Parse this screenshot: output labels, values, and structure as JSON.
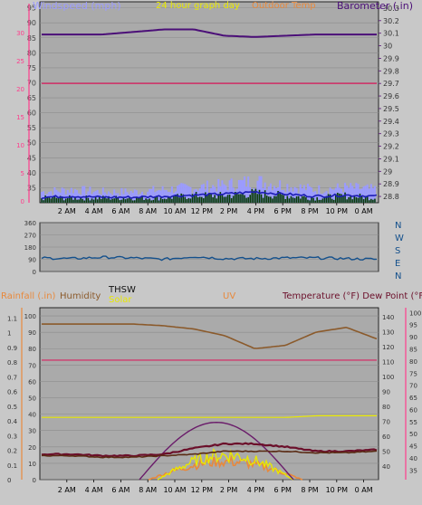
{
  "header": {
    "wind_label": "Windspeed (mph)",
    "graph_label": "24 hour graph day",
    "temp_label": "Outdoor Temp",
    "baro_label": "Barometer (.in)"
  },
  "compass": [
    "N",
    "W",
    "S",
    "E",
    "N"
  ],
  "colors": {
    "background": "#c8c8c8",
    "plot_bg": "#aaaaaa",
    "grid": "#8c8c8c",
    "wind": "#9b9bff",
    "wind_dark": "#1c1cb4",
    "wind_avg": "#0a3d0a",
    "barometer": "#4b0f78",
    "outdoor_temp": "#d03a6e",
    "direction": "#14508c",
    "humidity": "#8b5a2b",
    "uv": "#6a1b6a",
    "solar": "#e8e800",
    "rain": "#e8893c",
    "temperature": "#6b0f2a",
    "dew_point": "#5a2b14",
    "axis_pink": "#ff3c8c",
    "axis_purple": "#5a1478",
    "axis_red": "#8b1a1a"
  },
  "chart_data": [
    {
      "type": "line",
      "title": "24 hour graph day",
      "x": [
        "2 AM",
        "4 AM",
        "6 AM",
        "8 AM",
        "10 AM",
        "12 PM",
        "2 PM",
        "4 PM",
        "6 PM",
        "8 PM",
        "10 PM",
        "0 AM"
      ],
      "y_left": {
        "label": "Windspeed (mph)",
        "ticks": [
          35,
          40,
          45,
          50,
          55,
          60,
          65,
          70,
          75,
          80,
          85,
          90,
          95
        ],
        "ylim": [
          30,
          97
        ]
      },
      "y_right": {
        "label": "Barometer (.in)",
        "ticks": [
          "28.8",
          "28.9",
          "29",
          "29.1",
          "29.2",
          "29.3",
          "29.4",
          "29.5",
          "29.6",
          "29.7",
          "29.8",
          "29.9",
          "30",
          "30.1",
          "30.2",
          "30.3"
        ],
        "ylim": [
          28.75,
          30.35
        ]
      },
      "pink_axis_ticks": [
        0,
        5,
        10,
        15,
        20,
        25,
        30
      ],
      "series": [
        {
          "name": "Barometer (.in)",
          "values": [
            30.09,
            30.09,
            30.09,
            30.11,
            30.13,
            30.13,
            30.08,
            30.07,
            30.08,
            30.09,
            30.09,
            30.09
          ]
        },
        {
          "name": "Outdoor Temp",
          "values": [
            29.7,
            29.7,
            29.7,
            29.7,
            29.7,
            29.7,
            29.7,
            29.7,
            29.7,
            29.7,
            29.7,
            29.7
          ]
        },
        {
          "values": [
            5,
            6,
            5,
            5,
            6,
            7,
            8,
            10,
            8,
            6,
            7,
            6
          ]
        },
        {
          "values": [
            2,
            2,
            2,
            2,
            2,
            3,
            3,
            4,
            3,
            2,
            3,
            2
          ]
        }
      ]
    },
    {
      "type": "line",
      "x": [
        "2 AM",
        "4 AM",
        "6 AM",
        "8 AM",
        "10 AM",
        "12 PM",
        "2 PM",
        "4 PM",
        "6 PM",
        "8 PM",
        "10 PM",
        "0 AM"
      ],
      "y_left": {
        "ticks": [
          0,
          90,
          180,
          270,
          360
        ],
        "ylim": [
          0,
          360
        ]
      },
      "series": [
        {
          "values": [
            100,
            95,
            105,
            100,
            90,
            110,
            95,
            95,
            100,
            100,
            95,
            90
          ]
        }
      ]
    },
    {
      "type": "line",
      "x": [
        "2 AM",
        "4 AM",
        "6 AM",
        "8 AM",
        "10 AM",
        "12 PM",
        "2 PM",
        "4 PM",
        "6 PM",
        "8 PM",
        "10 PM",
        "0 AM"
      ],
      "labels": {
        "rain": "Rainfall (.in)",
        "humidity": "Humidity",
        "thsw": "THSW",
        "solar": "Solar",
        "uv": "UV",
        "temp": "Temperature (°F) Dew Point (°F)"
      },
      "rain_axis": {
        "ticks": [
          "0",
          "0.1",
          "0.2",
          "0.3",
          "0.4",
          "0.5",
          "0.6",
          "0.7",
          "0.8",
          "0.9",
          "1",
          "1.1"
        ],
        "ylim": [
          0,
          1.17
        ]
      },
      "pct_axis": {
        "ticks": [
          0,
          10,
          20,
          30,
          40,
          50,
          60,
          70,
          80,
          90,
          100
        ],
        "ylim": [
          0,
          105
        ]
      },
      "temp_axis": {
        "ticks": [
          40,
          50,
          60,
          70,
          80,
          90,
          100,
          110,
          120,
          130,
          140
        ],
        "ylim": [
          31,
          146
        ]
      },
      "pink_axis": {
        "ticks": [
          35,
          40,
          45,
          50,
          55,
          60,
          65,
          70,
          75,
          80,
          85,
          90,
          95,
          100
        ],
        "ylim": [
          31,
          102
        ]
      },
      "series": [
        {
          "name": "Humidity",
          "values": [
            95,
            95,
            95,
            95,
            94,
            92,
            88,
            80,
            82,
            90,
            93,
            86
          ]
        },
        {
          "values": [
            73,
            73,
            73,
            73,
            73,
            73,
            73,
            73,
            73,
            73,
            73,
            73
          ]
        },
        {
          "name": "Solar",
          "values": [
            38,
            38,
            38,
            38,
            38,
            38,
            38,
            38,
            38,
            39,
            39,
            39
          ]
        },
        {
          "name": "Temperature (°F)",
          "values": [
            48,
            48,
            47,
            47,
            48,
            52,
            55,
            55,
            53,
            50,
            50,
            51
          ]
        },
        {
          "name": "Dew Point (°F)",
          "values": [
            47,
            47,
            46,
            46,
            47,
            48,
            50,
            50,
            50,
            49,
            49,
            50
          ]
        },
        {
          "name": "UV",
          "values": [
            0,
            0,
            0,
            0,
            2,
            5,
            7,
            5,
            2,
            0,
            0,
            0
          ]
        }
      ]
    }
  ]
}
